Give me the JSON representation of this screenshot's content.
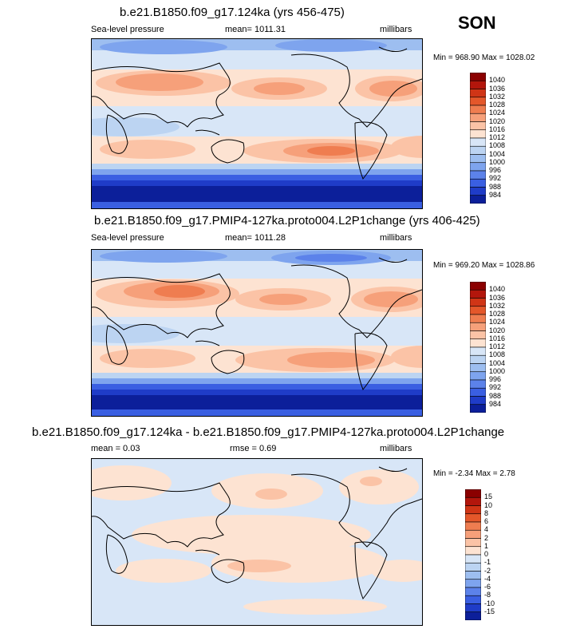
{
  "season": "SON",
  "panels": [
    {
      "title": "b.e21.B1850.f09_g17.124ka (yrs 456-475)",
      "left_label": "Sea-level pressure",
      "mean": "mean= 1011.31",
      "units": "millibars",
      "minmax": "Min = 968.90 Max = 1028.02"
    },
    {
      "title": "b.e21.B1850.f09_g17.PMIP4-127ka.proto004.L2P1change (yrs 406-425)",
      "left_label": "Sea-level pressure",
      "mean": "mean= 1011.28",
      "units": "millibars",
      "minmax": "Min = 969.20 Max = 1028.86"
    },
    {
      "title": "b.e21.B1850.f09_g17.124ka - b.e21.B1850.f09_g17.PMIP4-127ka.proto004.L2P1change",
      "mean": "mean =   0.03",
      "rmse": "rmse =   0.69",
      "units": "millibars",
      "minmax": "Min =  -2.34 Max =   2.78"
    }
  ],
  "colorbar_abs": {
    "labels": [
      "1040",
      "1036",
      "1032",
      "1028",
      "1024",
      "1020",
      "1016",
      "1012",
      "1008",
      "1004",
      "1000",
      "996",
      "992",
      "988",
      "984"
    ],
    "colors": [
      "#8b0000",
      "#b3160c",
      "#d03516",
      "#e4572a",
      "#ef7d50",
      "#f6a07a",
      "#fbc3a6",
      "#fde3d2",
      "#d8e6f7",
      "#bcd4f2",
      "#9dbef0",
      "#7ea4ee",
      "#5c82ea",
      "#3a5fe2",
      "#1f3cc8",
      "#0c1f9a"
    ]
  },
  "colorbar_diff": {
    "labels": [
      "15",
      "10",
      "8",
      "6",
      "4",
      "2",
      "1",
      "0",
      "-1",
      "-2",
      "-4",
      "-6",
      "-8",
      "-10",
      "-15"
    ],
    "colors": [
      "#8b0000",
      "#b3160c",
      "#d03516",
      "#e4572a",
      "#ef7d50",
      "#f6a07a",
      "#fbc3a6",
      "#fde3d2",
      "#d8e6f7",
      "#bcd4f2",
      "#9dbef0",
      "#7ea4ee",
      "#5c82ea",
      "#3a5fe2",
      "#1f3cc8",
      "#0c1f9a"
    ]
  },
  "chart_data": [
    {
      "type": "heatmap",
      "title": "b.e21.B1850.f09_g17.124ka (yrs 456-475)",
      "variable": "Sea-level pressure",
      "units": "millibars",
      "mean": 1011.31,
      "min": 968.9,
      "max": 1028.02,
      "levels": [
        984,
        988,
        992,
        996,
        1000,
        1004,
        1008,
        1012,
        1016,
        1020,
        1024,
        1028,
        1032,
        1036,
        1040
      ]
    },
    {
      "type": "heatmap",
      "title": "b.e21.B1850.f09_g17.PMIP4-127ka.proto004.L2P1change (yrs 406-425)",
      "variable": "Sea-level pressure",
      "units": "millibars",
      "mean": 1011.28,
      "min": 969.2,
      "max": 1028.86,
      "levels": [
        984,
        988,
        992,
        996,
        1000,
        1004,
        1008,
        1012,
        1016,
        1020,
        1024,
        1028,
        1032,
        1036,
        1040
      ]
    },
    {
      "type": "heatmap",
      "title": "b.e21.B1850.f09_g17.124ka - b.e21.B1850.f09_g17.PMIP4-127ka.proto004.L2P1change",
      "units": "millibars",
      "mean": 0.03,
      "rmse": 0.69,
      "min": -2.34,
      "max": 2.78,
      "levels": [
        -15,
        -10,
        -8,
        -6,
        -4,
        -2,
        -1,
        0,
        1,
        2,
        4,
        6,
        8,
        10,
        15
      ]
    }
  ]
}
